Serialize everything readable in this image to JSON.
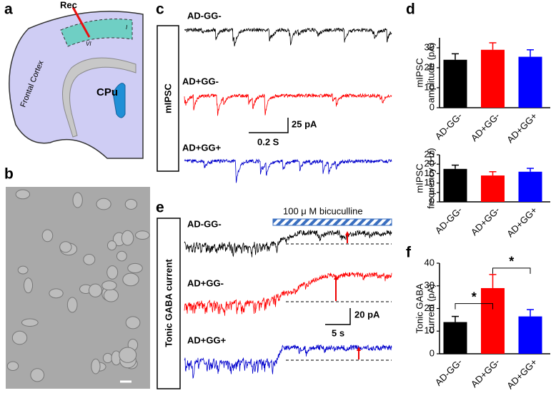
{
  "panel_labels": [
    "a",
    "b",
    "c",
    "d",
    "e",
    "f"
  ],
  "panel_a": {
    "electrode": "Rec",
    "region": "Frontal Cortex",
    "striatum": "CPu",
    "layer_top": "I",
    "layer_bottom": "VI"
  },
  "panel_c": {
    "box_label": "mIPSC",
    "traces": [
      "AD-GG-",
      "AD+GG-",
      "AD+GG+"
    ],
    "scale_y": "25 pA",
    "scale_x": "0.2 S"
  },
  "panel_e": {
    "box_label": "Tonic GABA current",
    "drug": "100 μ M bicuculline",
    "traces": [
      "AD-GG-",
      "AD+GG-",
      "AD+GG+"
    ],
    "scale_y": "20 pA",
    "scale_x": "5 s"
  },
  "chart_data": [
    {
      "type": "bar",
      "ylabel": [
        "mIPSC",
        "amplitude (pA)"
      ],
      "categories": [
        "AD-GG-",
        "AD+GG-",
        "AD+GG+"
      ],
      "values": [
        24,
        29,
        25.5
      ],
      "errors": [
        3,
        3.5,
        3.5
      ],
      "colors": [
        "#000000",
        "#ff0000",
        "#0000ff"
      ],
      "ylim": [
        0,
        35
      ],
      "yticks": [
        0,
        10,
        20,
        30
      ]
    },
    {
      "type": "bar",
      "ylabel": [
        "mIPSC",
        "frequency (Hz)"
      ],
      "categories": [
        "AD-GG-",
        "AD+GG-",
        "AD+GG+"
      ],
      "values": [
        17.5,
        14,
        16
      ],
      "errors": [
        2,
        2,
        1.8
      ],
      "colors": [
        "#000000",
        "#ff0000",
        "#0000ff"
      ],
      "ylim": [
        0,
        25
      ],
      "yticks": [
        0,
        5,
        10,
        15,
        20,
        25
      ]
    },
    {
      "type": "bar",
      "ylabel": [
        "Tonic GABA",
        "current (pA)"
      ],
      "categories": [
        "AD-GG-",
        "AD+GG-",
        "AD+GG+"
      ],
      "values": [
        14,
        29,
        16.5
      ],
      "errors": [
        2.5,
        6,
        3
      ],
      "colors": [
        "#000000",
        "#ff0000",
        "#0000ff"
      ],
      "ylim": [
        0,
        40
      ],
      "yticks": [
        0,
        10,
        20,
        30,
        40
      ],
      "significance": [
        "*",
        "*"
      ]
    }
  ]
}
